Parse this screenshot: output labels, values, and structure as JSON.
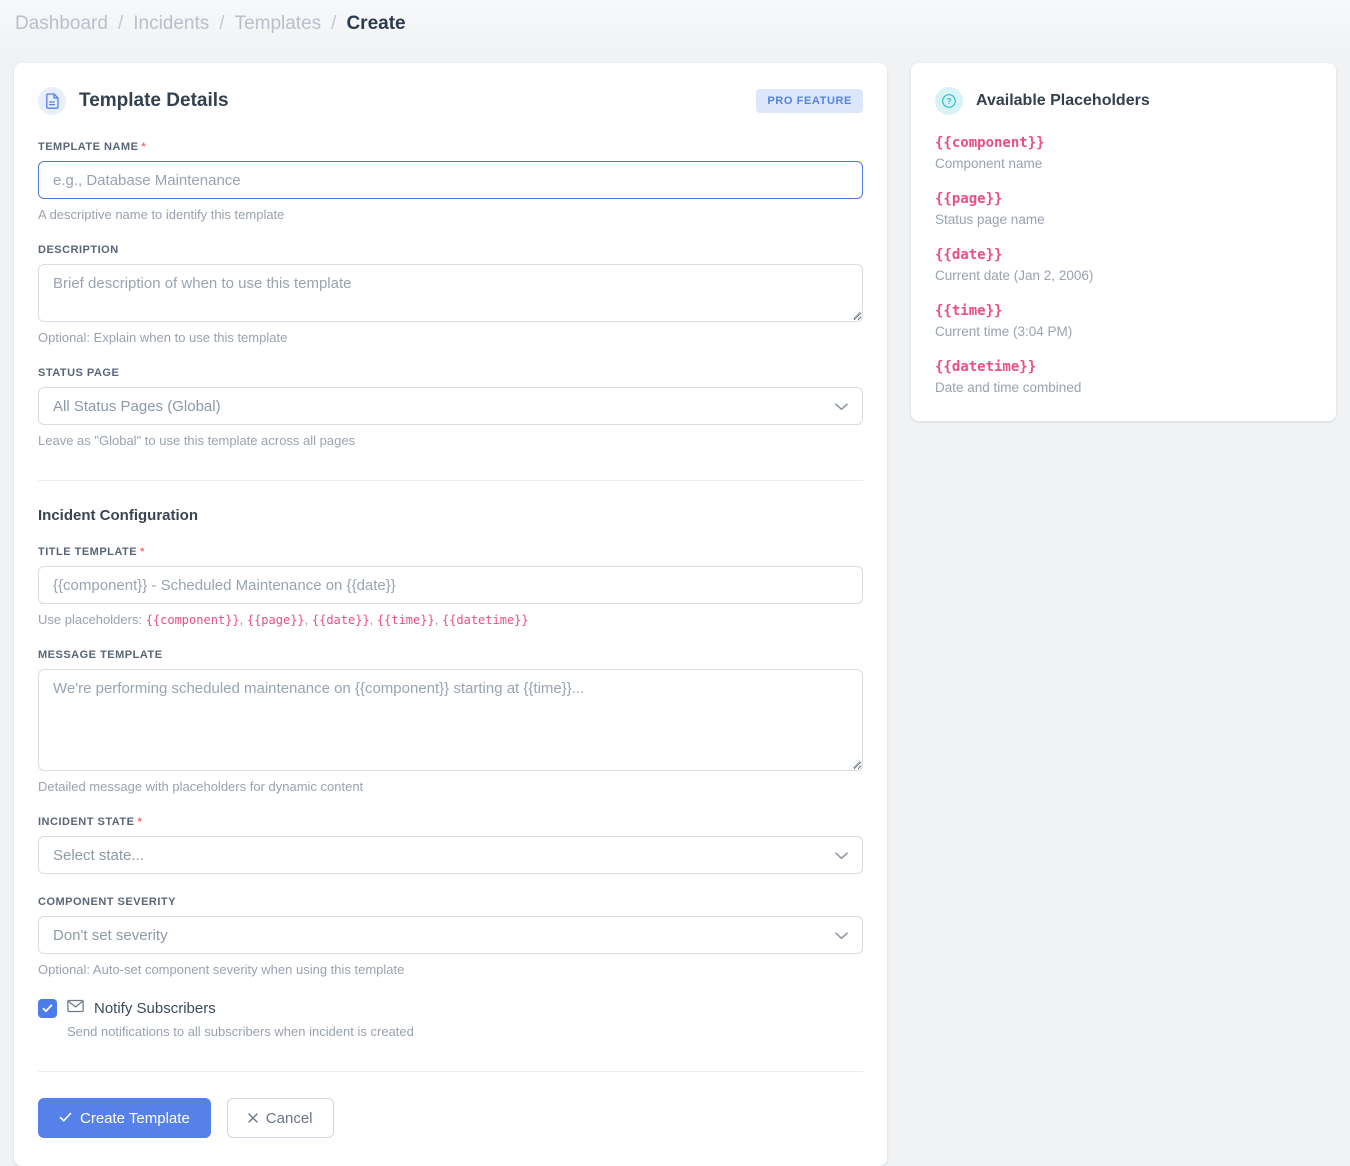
{
  "breadcrumb": {
    "dashboard": "Dashboard",
    "incidents": "Incidents",
    "templates": "Templates",
    "create": "Create",
    "separator": "/"
  },
  "template_card": {
    "title": "Template Details",
    "badge": "PRO FEATURE",
    "section_heading": "Incident Configuration",
    "fields": {
      "template_name": {
        "label": "TEMPLATE NAME",
        "required_mark": "*",
        "placeholder": "e.g., Database Maintenance",
        "help": "A descriptive name to identify this template"
      },
      "description": {
        "label": "DESCRIPTION",
        "placeholder": "Brief description of when to use this template",
        "help": "Optional: Explain when to use this template"
      },
      "status_page": {
        "label": "STATUS PAGE",
        "selected": "All Status Pages (Global)",
        "help": "Leave as \"Global\" to use this template across all pages"
      },
      "title_template": {
        "label": "TITLE TEMPLATE",
        "required_mark": "*",
        "placeholder": "{{component}} - Scheduled Maintenance on {{date}}",
        "help_prefix": "Use placeholders:",
        "help_codes": [
          "{{component}}",
          "{{page}}",
          "{{date}}",
          "{{time}}",
          "{{datetime}}"
        ]
      },
      "message_template": {
        "label": "MESSAGE TEMPLATE",
        "placeholder": "We're performing scheduled maintenance on {{component}} starting at {{time}}...",
        "help": "Detailed message with placeholders for dynamic content"
      },
      "incident_state": {
        "label": "INCIDENT STATE",
        "required_mark": "*",
        "selected": "Select state..."
      },
      "component_severity": {
        "label": "COMPONENT SEVERITY",
        "selected": "Don't set severity",
        "help": "Optional: Auto-set component severity when using this template"
      },
      "notify_subscribers": {
        "label": "Notify Subscribers",
        "checked": true,
        "help": "Send notifications to all subscribers when incident is created"
      }
    },
    "buttons": {
      "create": "Create Template",
      "cancel": "Cancel"
    }
  },
  "placeholders_card": {
    "title": "Available Placeholders",
    "items": [
      {
        "code": "{{component}}",
        "desc": "Component name"
      },
      {
        "code": "{{page}}",
        "desc": "Status page name"
      },
      {
        "code": "{{date}}",
        "desc": "Current date (Jan 2, 2006)"
      },
      {
        "code": "{{time}}",
        "desc": "Current time (3:04 PM)"
      },
      {
        "code": "{{datetime}}",
        "desc": "Date and time combined"
      }
    ]
  },
  "colors": {
    "accent_blue": "#5581e8",
    "focus_blue": "#4c7ce8",
    "badge_bg": "#dce7fb",
    "badge_text": "#5584e4",
    "code_pink": "#ee4d82",
    "help_teal": "#2bbfce"
  }
}
